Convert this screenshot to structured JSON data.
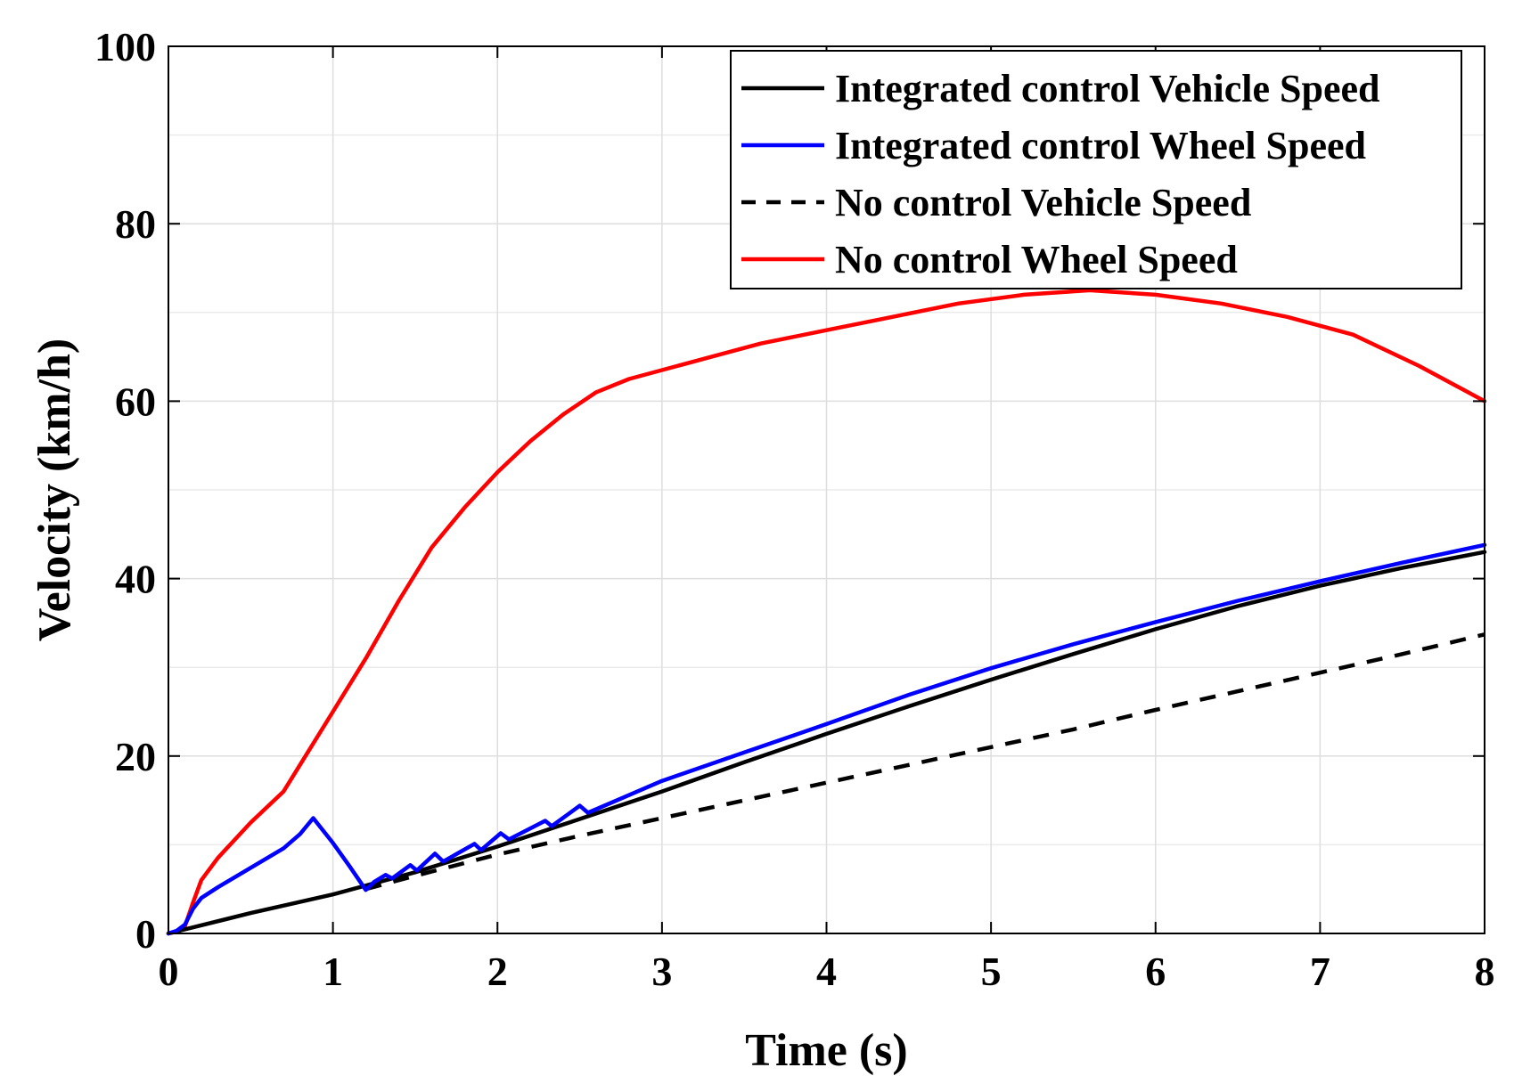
{
  "chart_data": {
    "type": "line",
    "title": "",
    "xlabel": "Time (s)",
    "ylabel": "Velocity (km/h)",
    "xlim": [
      0,
      8
    ],
    "ylim": [
      0,
      100
    ],
    "xticks": [
      "0",
      "1",
      "2",
      "3",
      "4",
      "5",
      "6",
      "7",
      "8"
    ],
    "yticks": [
      "0",
      "20",
      "40",
      "60",
      "80",
      "100"
    ],
    "grid": true,
    "legend_position": "top-right",
    "series": [
      {
        "name": "Integrated control Vehicle Speed",
        "color": "#000000",
        "style": "solid",
        "x": [
          0,
          0.5,
          1.0,
          1.5,
          2.0,
          2.5,
          3.0,
          3.5,
          4.0,
          4.5,
          5.0,
          5.5,
          6.0,
          6.5,
          7.0,
          7.5,
          8.0
        ],
        "y": [
          0,
          2.3,
          4.4,
          6.9,
          9.8,
          12.9,
          16.0,
          19.3,
          22.5,
          25.6,
          28.6,
          31.5,
          34.3,
          36.9,
          39.2,
          41.2,
          43.0
        ]
      },
      {
        "name": "Integrated control Wheel Speed",
        "color": "#0000ff",
        "style": "solid",
        "x": [
          0,
          0.05,
          0.1,
          0.15,
          0.2,
          0.3,
          0.5,
          0.7,
          0.8,
          0.88,
          1.0,
          1.1,
          1.2,
          1.25,
          1.32,
          1.36,
          1.47,
          1.51,
          1.62,
          1.67,
          1.86,
          1.9,
          2.02,
          2.07,
          2.29,
          2.33,
          2.5,
          2.55,
          3.0,
          3.5,
          4.0,
          4.5,
          5.0,
          5.5,
          6.0,
          6.5,
          7.0,
          7.5,
          8.0
        ],
        "y": [
          0,
          0.3,
          1.0,
          2.8,
          4.0,
          5.2,
          7.4,
          9.6,
          11.2,
          13.0,
          10.2,
          7.6,
          4.9,
          5.8,
          6.6,
          6.2,
          7.7,
          7.1,
          9.0,
          8.1,
          10.1,
          9.4,
          11.3,
          10.6,
          12.7,
          12.1,
          14.4,
          13.6,
          17.2,
          20.4,
          23.6,
          26.9,
          29.9,
          32.6,
          35.1,
          37.5,
          39.7,
          41.8,
          43.8
        ]
      },
      {
        "name": "No control Vehicle Speed",
        "color": "#000000",
        "style": "dashed",
        "x": [
          1.2,
          1.5,
          2.0,
          2.5,
          3.0,
          3.5,
          4.0,
          4.5,
          5.0,
          5.5,
          6.0,
          6.5,
          7.0,
          7.5,
          8.0
        ],
        "y": [
          5.0,
          6.5,
          8.9,
          11.0,
          13.0,
          15.0,
          17.0,
          19.0,
          21.0,
          23.0,
          25.2,
          27.3,
          29.4,
          31.5,
          33.7
        ]
      },
      {
        "name": "No control Wheel Speed",
        "color": "#ff0000",
        "style": "solid",
        "x": [
          0,
          0.05,
          0.1,
          0.15,
          0.2,
          0.3,
          0.5,
          0.7,
          0.85,
          1.0,
          1.2,
          1.4,
          1.6,
          1.8,
          2.0,
          2.2,
          2.4,
          2.6,
          2.8,
          3.0,
          3.3,
          3.6,
          4.0,
          4.4,
          4.8,
          5.2,
          5.6,
          6.0,
          6.4,
          6.8,
          7.2,
          7.6,
          8.0
        ],
        "y": [
          0,
          0.2,
          0.8,
          3.5,
          6.0,
          8.5,
          12.5,
          16.0,
          20.5,
          25.0,
          31.0,
          37.5,
          43.5,
          48.0,
          52.0,
          55.5,
          58.5,
          61.0,
          62.5,
          63.5,
          65.0,
          66.5,
          68.0,
          69.5,
          71.0,
          72.0,
          72.5,
          72.0,
          71.0,
          69.5,
          67.5,
          64.0,
          60.0
        ]
      }
    ]
  }
}
